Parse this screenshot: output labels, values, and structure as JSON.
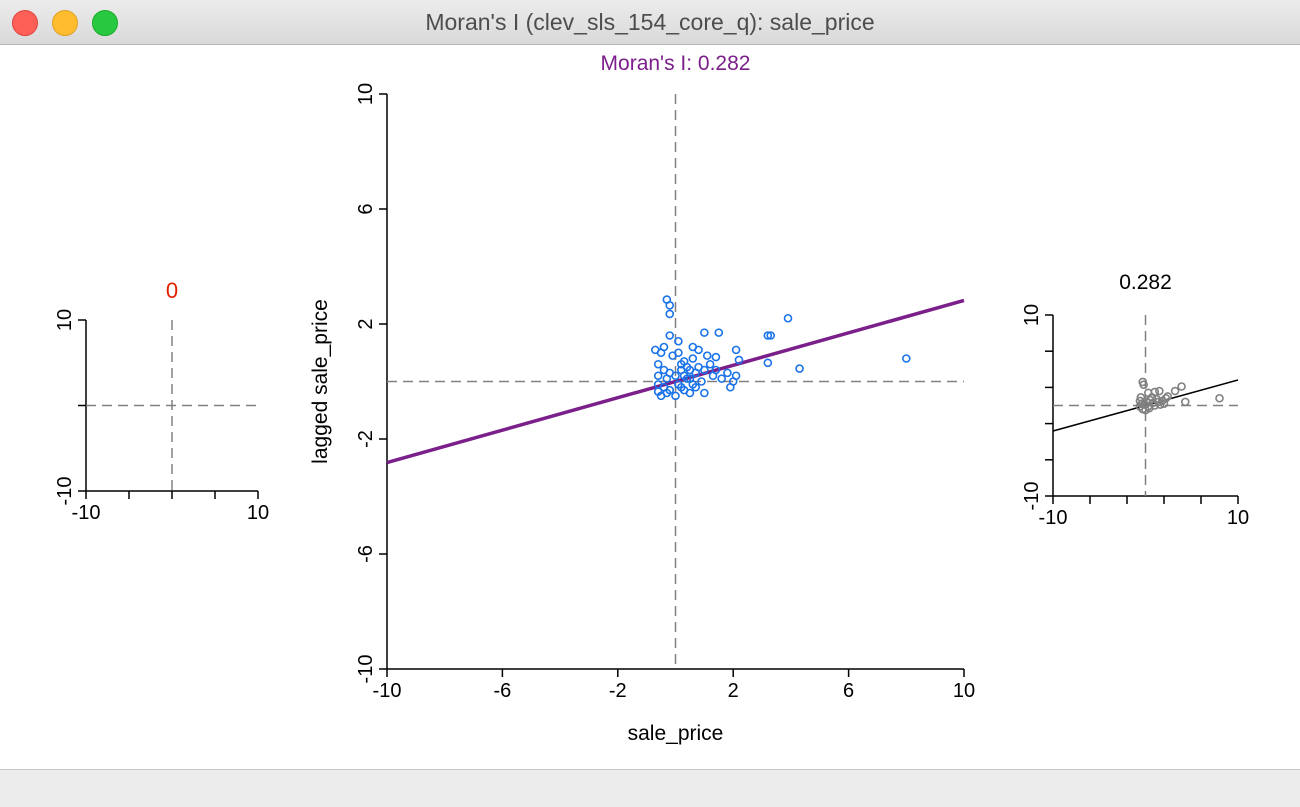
{
  "window": {
    "title": "Moran's I (clev_sls_154_core_q): sale_price"
  },
  "colors": {
    "main_points": "#1a73e8",
    "main_line": "#7b1f8a",
    "left_title": "#e02000",
    "right_points": "#808080",
    "right_line": "#000000",
    "axis": "#000000",
    "reference_lines": "#808080"
  },
  "chart_data": [
    {
      "type": "scatter",
      "title": "0",
      "xlabel": "",
      "ylabel": "",
      "xlim": [
        -10,
        10
      ],
      "ylim": [
        -10,
        10
      ],
      "x_tick_labels": [
        "-10",
        "10"
      ],
      "y_tick_labels": [
        "-10",
        "10"
      ],
      "points": [],
      "regression": {
        "slope": 0,
        "intercept": 0
      }
    },
    {
      "type": "scatter",
      "title": "Moran's I: 0.282",
      "xlabel": "sale_price",
      "ylabel": "lagged sale_price",
      "xlim": [
        -10,
        10
      ],
      "ylim": [
        -10,
        10
      ],
      "x_tick_labels": [
        "-10",
        "-6",
        "-2",
        "2",
        "6",
        "10"
      ],
      "y_tick_labels": [
        "-10",
        "-6",
        "-2",
        "2",
        "6",
        "10"
      ],
      "regression": {
        "slope": 0.282,
        "intercept": 0
      },
      "points": [
        [
          -0.3,
          2.85
        ],
        [
          -0.2,
          2.65
        ],
        [
          -0.2,
          2.35
        ],
        [
          -0.4,
          1.2
        ],
        [
          -0.2,
          1.6
        ],
        [
          -0.7,
          1.1
        ],
        [
          -0.5,
          1.0
        ],
        [
          0.1,
          1.4
        ],
        [
          0.6,
          1.2
        ],
        [
          1.0,
          1.7
        ],
        [
          1.5,
          1.7
        ],
        [
          3.2,
          1.6
        ],
        [
          3.3,
          1.6
        ],
        [
          3.9,
          2.2
        ],
        [
          2.1,
          1.1
        ],
        [
          2.2,
          0.75
        ],
        [
          1.4,
          0.85
        ],
        [
          3.2,
          0.65
        ],
        [
          4.3,
          0.45
        ],
        [
          8.0,
          0.8
        ],
        [
          -0.6,
          0.6
        ],
        [
          -0.4,
          0.4
        ],
        [
          -0.6,
          0.2
        ],
        [
          -0.3,
          0.1
        ],
        [
          -0.6,
          -0.1
        ],
        [
          -0.4,
          -0.2
        ],
        [
          -0.2,
          -0.3
        ],
        [
          0.0,
          -0.5
        ],
        [
          -0.5,
          -0.5
        ],
        [
          -0.3,
          -0.4
        ],
        [
          -0.6,
          -0.35
        ],
        [
          0.1,
          -0.1
        ],
        [
          0.3,
          0.2
        ],
        [
          0.4,
          0.5
        ],
        [
          0.5,
          0.4
        ],
        [
          0.6,
          0.8
        ],
        [
          0.7,
          0.3
        ],
        [
          0.8,
          0.5
        ],
        [
          0.9,
          0.0
        ],
        [
          1.0,
          0.4
        ],
        [
          1.2,
          0.6
        ],
        [
          1.3,
          0.2
        ],
        [
          1.4,
          0.4
        ],
        [
          1.6,
          0.1
        ],
        [
          1.8,
          0.3
        ],
        [
          1.9,
          -0.2
        ],
        [
          2.0,
          0.0
        ],
        [
          2.1,
          0.2
        ],
        [
          0.5,
          -0.4
        ],
        [
          0.3,
          -0.3
        ],
        [
          0.2,
          0.6
        ],
        [
          -0.1,
          0.9
        ],
        [
          0.1,
          1.0
        ],
        [
          0.8,
          1.1
        ],
        [
          1.1,
          0.9
        ],
        [
          0.4,
          0.1
        ],
        [
          0.2,
          -0.2
        ],
        [
          0.6,
          -0.1
        ],
        [
          -0.2,
          0.3
        ],
        [
          0.0,
          0.2
        ],
        [
          0.2,
          0.4
        ],
        [
          0.5,
          0.1
        ],
        [
          0.7,
          -0.2
        ],
        [
          1.0,
          -0.4
        ],
        [
          0.3,
          0.7
        ]
      ]
    },
    {
      "type": "scatter",
      "title": "0.282",
      "xlabel": "",
      "ylabel": "",
      "xlim": [
        -10,
        10
      ],
      "ylim": [
        -10,
        10
      ],
      "x_tick_labels": [
        "-10",
        "10"
      ],
      "y_tick_labels": [
        "-10",
        "10"
      ],
      "regression": {
        "slope": 0.282,
        "intercept": 0
      },
      "points": [
        [
          -0.3,
          2.6
        ],
        [
          -0.2,
          2.3
        ],
        [
          0.3,
          1.4
        ],
        [
          1.0,
          1.5
        ],
        [
          1.5,
          1.6
        ],
        [
          3.2,
          1.6
        ],
        [
          3.9,
          2.1
        ],
        [
          2.2,
          0.8
        ],
        [
          4.3,
          0.4
        ],
        [
          8.0,
          0.8
        ],
        [
          -0.5,
          0.9
        ],
        [
          -0.6,
          0.5
        ],
        [
          -0.4,
          0.2
        ],
        [
          -0.6,
          -0.1
        ],
        [
          -0.3,
          -0.4
        ],
        [
          0.0,
          -0.5
        ],
        [
          0.2,
          0.3
        ],
        [
          0.5,
          0.6
        ],
        [
          0.8,
          0.3
        ],
        [
          1.2,
          0.7
        ],
        [
          1.6,
          0.1
        ],
        [
          2.0,
          0.2
        ],
        [
          0.4,
          -0.3
        ],
        [
          0.7,
          0.9
        ],
        [
          1.8,
          0.5
        ],
        [
          -0.1,
          0.1
        ],
        [
          0.3,
          -0.1
        ],
        [
          1.0,
          0.0
        ],
        [
          1.4,
          0.4
        ],
        [
          2.4,
          1.0
        ]
      ]
    }
  ]
}
